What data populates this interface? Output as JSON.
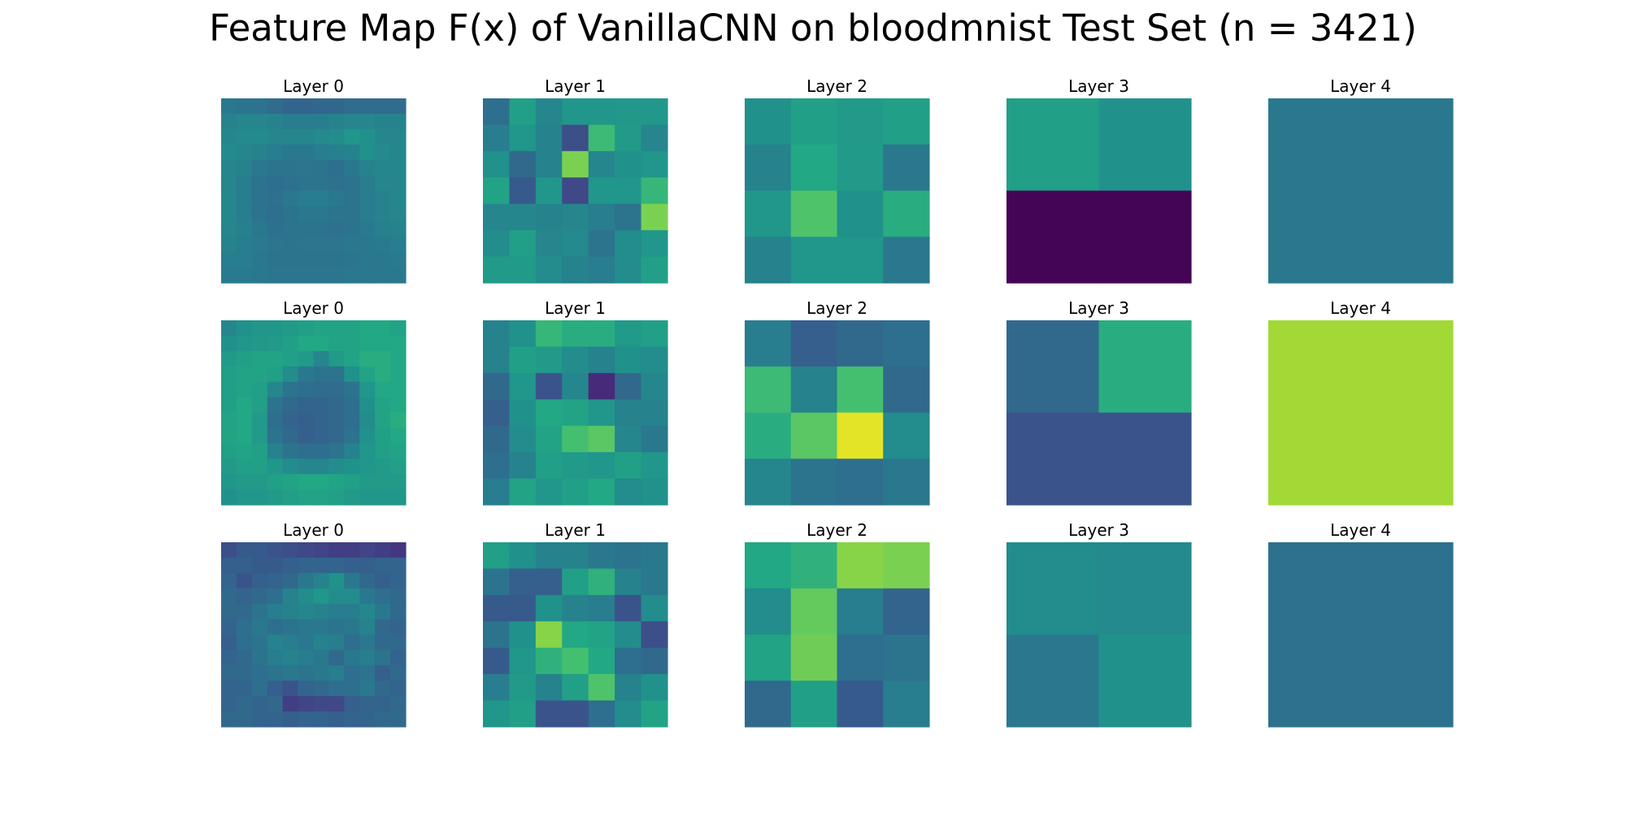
{
  "title": "Feature Map F(x) of VanillaCNN on bloodmnist Test Set (n = 3421)",
  "chart_data": {
    "type": "heatmap",
    "colormap": "viridis",
    "grid": false,
    "axes": "off",
    "rows": [
      {
        "panels": [
          {
            "title": "Layer 0",
            "values": [
              [
                0.4,
                0.38,
                0.38,
                0.35,
                0.32,
                0.32,
                0.33,
                0.33,
                0.35,
                0.35,
                0.35,
                0.35
              ],
              [
                0.44,
                0.45,
                0.45,
                0.44,
                0.42,
                0.42,
                0.42,
                0.44,
                0.45,
                0.45,
                0.44,
                0.44
              ],
              [
                0.46,
                0.47,
                0.47,
                0.46,
                0.45,
                0.46,
                0.47,
                0.48,
                0.52,
                0.5,
                0.46,
                0.46
              ],
              [
                0.47,
                0.46,
                0.44,
                0.42,
                0.4,
                0.4,
                0.42,
                0.43,
                0.44,
                0.5,
                0.47,
                0.46
              ],
              [
                0.46,
                0.44,
                0.4,
                0.38,
                0.38,
                0.39,
                0.38,
                0.36,
                0.4,
                0.44,
                0.46,
                0.46
              ],
              [
                0.45,
                0.42,
                0.38,
                0.36,
                0.37,
                0.38,
                0.38,
                0.37,
                0.38,
                0.42,
                0.45,
                0.46
              ],
              [
                0.46,
                0.42,
                0.38,
                0.37,
                0.4,
                0.42,
                0.42,
                0.4,
                0.38,
                0.42,
                0.44,
                0.46
              ],
              [
                0.46,
                0.42,
                0.38,
                0.36,
                0.38,
                0.4,
                0.4,
                0.38,
                0.38,
                0.42,
                0.44,
                0.45
              ],
              [
                0.45,
                0.43,
                0.4,
                0.37,
                0.38,
                0.38,
                0.38,
                0.37,
                0.38,
                0.41,
                0.43,
                0.44
              ],
              [
                0.44,
                0.42,
                0.41,
                0.39,
                0.38,
                0.39,
                0.39,
                0.39,
                0.4,
                0.4,
                0.41,
                0.42
              ],
              [
                0.42,
                0.42,
                0.4,
                0.38,
                0.38,
                0.38,
                0.38,
                0.38,
                0.39,
                0.4,
                0.4,
                0.41
              ],
              [
                0.41,
                0.41,
                0.4,
                0.39,
                0.39,
                0.39,
                0.39,
                0.39,
                0.4,
                0.4,
                0.4,
                0.4
              ]
            ]
          },
          {
            "title": "Layer 1",
            "values": [
              [
                0.36,
                0.56,
                0.46,
                0.52,
                0.52,
                0.53,
                0.53
              ],
              [
                0.42,
                0.52,
                0.44,
                0.24,
                0.68,
                0.54,
                0.45
              ],
              [
                0.5,
                0.34,
                0.44,
                0.8,
                0.46,
                0.5,
                0.52
              ],
              [
                0.58,
                0.28,
                0.52,
                0.22,
                0.52,
                0.52,
                0.66
              ],
              [
                0.46,
                0.46,
                0.44,
                0.46,
                0.42,
                0.38,
                0.8
              ],
              [
                0.48,
                0.56,
                0.45,
                0.47,
                0.38,
                0.48,
                0.52
              ],
              [
                0.54,
                0.54,
                0.48,
                0.44,
                0.42,
                0.48,
                0.56
              ]
            ]
          },
          {
            "title": "Layer 2",
            "values": [
              [
                0.5,
                0.56,
                0.54,
                0.56
              ],
              [
                0.44,
                0.6,
                0.54,
                0.4
              ],
              [
                0.52,
                0.72,
                0.5,
                0.62
              ],
              [
                0.44,
                0.52,
                0.52,
                0.4
              ]
            ]
          },
          {
            "title": "Layer 3",
            "values": [
              [
                0.56,
                0.5
              ],
              [
                0.01,
                0.01
              ]
            ]
          },
          {
            "title": "Layer 4",
            "values": [
              [
                0.4
              ]
            ]
          }
        ]
      },
      {
        "panels": [
          {
            "title": "Layer 0",
            "values": [
              [
                0.46,
                0.5,
                0.52,
                0.52,
                0.54,
                0.56,
                0.58,
                0.58,
                0.58,
                0.6,
                0.6,
                0.58
              ],
              [
                0.5,
                0.52,
                0.53,
                0.54,
                0.56,
                0.6,
                0.6,
                0.58,
                0.58,
                0.6,
                0.6,
                0.6
              ],
              [
                0.54,
                0.56,
                0.58,
                0.58,
                0.56,
                0.54,
                0.46,
                0.54,
                0.58,
                0.62,
                0.62,
                0.6
              ],
              [
                0.56,
                0.58,
                0.58,
                0.56,
                0.48,
                0.4,
                0.38,
                0.38,
                0.5,
                0.58,
                0.62,
                0.6
              ],
              [
                0.56,
                0.58,
                0.56,
                0.46,
                0.38,
                0.36,
                0.35,
                0.35,
                0.38,
                0.52,
                0.6,
                0.6
              ],
              [
                0.56,
                0.6,
                0.56,
                0.38,
                0.34,
                0.32,
                0.32,
                0.34,
                0.36,
                0.5,
                0.58,
                0.6
              ],
              [
                0.58,
                0.6,
                0.54,
                0.36,
                0.32,
                0.3,
                0.32,
                0.34,
                0.36,
                0.48,
                0.58,
                0.62
              ],
              [
                0.58,
                0.6,
                0.54,
                0.38,
                0.34,
                0.3,
                0.32,
                0.34,
                0.38,
                0.5,
                0.56,
                0.6
              ],
              [
                0.56,
                0.58,
                0.56,
                0.44,
                0.38,
                0.36,
                0.36,
                0.38,
                0.44,
                0.52,
                0.56,
                0.58
              ],
              [
                0.54,
                0.56,
                0.56,
                0.52,
                0.48,
                0.46,
                0.46,
                0.48,
                0.5,
                0.52,
                0.54,
                0.56
              ],
              [
                0.52,
                0.54,
                0.54,
                0.56,
                0.58,
                0.6,
                0.6,
                0.58,
                0.56,
                0.54,
                0.54,
                0.54
              ],
              [
                0.5,
                0.52,
                0.52,
                0.54,
                0.56,
                0.58,
                0.58,
                0.56,
                0.54,
                0.52,
                0.52,
                0.52
              ]
            ]
          },
          {
            "title": "Layer 1",
            "values": [
              [
                0.44,
                0.5,
                0.66,
                0.62,
                0.62,
                0.54,
                0.56
              ],
              [
                0.44,
                0.56,
                0.54,
                0.48,
                0.44,
                0.5,
                0.48
              ],
              [
                0.34,
                0.52,
                0.26,
                0.46,
                0.12,
                0.34,
                0.46
              ],
              [
                0.3,
                0.5,
                0.6,
                0.58,
                0.52,
                0.44,
                0.44
              ],
              [
                0.34,
                0.48,
                0.58,
                0.7,
                0.74,
                0.46,
                0.4
              ],
              [
                0.36,
                0.44,
                0.56,
                0.54,
                0.52,
                0.56,
                0.52
              ],
              [
                0.42,
                0.58,
                0.52,
                0.56,
                0.6,
                0.48,
                0.5
              ]
            ]
          },
          {
            "title": "Layer 2",
            "values": [
              [
                0.42,
                0.3,
                0.34,
                0.36
              ],
              [
                0.68,
                0.44,
                0.7,
                0.34
              ],
              [
                0.62,
                0.74,
                0.96,
                0.48
              ],
              [
                0.46,
                0.38,
                0.36,
                0.4
              ]
            ]
          },
          {
            "title": "Layer 3",
            "values": [
              [
                0.34,
                0.62
              ],
              [
                0.26,
                0.26
              ]
            ]
          },
          {
            "title": "Layer 4",
            "values": [
              [
                0.86
              ]
            ]
          }
        ]
      },
      {
        "panels": [
          {
            "title": "Layer 0",
            "values": [
              [
                0.24,
                0.28,
                0.28,
                0.26,
                0.24,
                0.22,
                0.2,
                0.18,
                0.18,
                0.2,
                0.18,
                0.16
              ],
              [
                0.3,
                0.3,
                0.28,
                0.28,
                0.3,
                0.32,
                0.32,
                0.32,
                0.3,
                0.3,
                0.32,
                0.32
              ],
              [
                0.32,
                0.26,
                0.3,
                0.32,
                0.34,
                0.4,
                0.44,
                0.5,
                0.4,
                0.34,
                0.3,
                0.32
              ],
              [
                0.34,
                0.32,
                0.34,
                0.36,
                0.44,
                0.48,
                0.52,
                0.48,
                0.48,
                0.4,
                0.36,
                0.34
              ],
              [
                0.34,
                0.34,
                0.38,
                0.42,
                0.44,
                0.46,
                0.44,
                0.42,
                0.42,
                0.46,
                0.4,
                0.34
              ],
              [
                0.32,
                0.36,
                0.4,
                0.36,
                0.38,
                0.4,
                0.4,
                0.38,
                0.4,
                0.44,
                0.34,
                0.32
              ],
              [
                0.3,
                0.36,
                0.38,
                0.44,
                0.42,
                0.4,
                0.44,
                0.42,
                0.36,
                0.4,
                0.34,
                0.34
              ],
              [
                0.32,
                0.34,
                0.38,
                0.42,
                0.44,
                0.42,
                0.4,
                0.34,
                0.4,
                0.42,
                0.38,
                0.32
              ],
              [
                0.34,
                0.34,
                0.36,
                0.38,
                0.4,
                0.38,
                0.4,
                0.42,
                0.36,
                0.38,
                0.3,
                0.34
              ],
              [
                0.32,
                0.32,
                0.36,
                0.3,
                0.26,
                0.32,
                0.34,
                0.36,
                0.36,
                0.4,
                0.34,
                0.32
              ],
              [
                0.32,
                0.34,
                0.32,
                0.34,
                0.18,
                0.2,
                0.22,
                0.22,
                0.3,
                0.32,
                0.32,
                0.34
              ],
              [
                0.34,
                0.34,
                0.32,
                0.32,
                0.3,
                0.32,
                0.32,
                0.3,
                0.32,
                0.32,
                0.34,
                0.34
              ]
            ]
          },
          {
            "title": "Layer 1",
            "values": [
              [
                0.56,
                0.5,
                0.44,
                0.44,
                0.4,
                0.38,
                0.4
              ],
              [
                0.38,
                0.3,
                0.3,
                0.56,
                0.64,
                0.44,
                0.4
              ],
              [
                0.28,
                0.28,
                0.5,
                0.44,
                0.42,
                0.26,
                0.48
              ],
              [
                0.38,
                0.5,
                0.82,
                0.6,
                0.58,
                0.48,
                0.24
              ],
              [
                0.28,
                0.52,
                0.64,
                0.7,
                0.6,
                0.36,
                0.34
              ],
              [
                0.42,
                0.54,
                0.44,
                0.56,
                0.72,
                0.44,
                0.5
              ],
              [
                0.52,
                0.56,
                0.26,
                0.26,
                0.36,
                0.48,
                0.58
              ]
            ]
          },
          {
            "title": "Layer 2",
            "values": [
              [
                0.6,
                0.64,
                0.82,
                0.8
              ],
              [
                0.48,
                0.76,
                0.42,
                0.32
              ],
              [
                0.58,
                0.78,
                0.36,
                0.38
              ],
              [
                0.34,
                0.56,
                0.28,
                0.42
              ]
            ]
          },
          {
            "title": "Layer 3",
            "values": [
              [
                0.48,
                0.47
              ],
              [
                0.4,
                0.5
              ]
            ]
          },
          {
            "title": "Layer 4",
            "values": [
              [
                0.37
              ]
            ]
          }
        ]
      }
    ]
  }
}
